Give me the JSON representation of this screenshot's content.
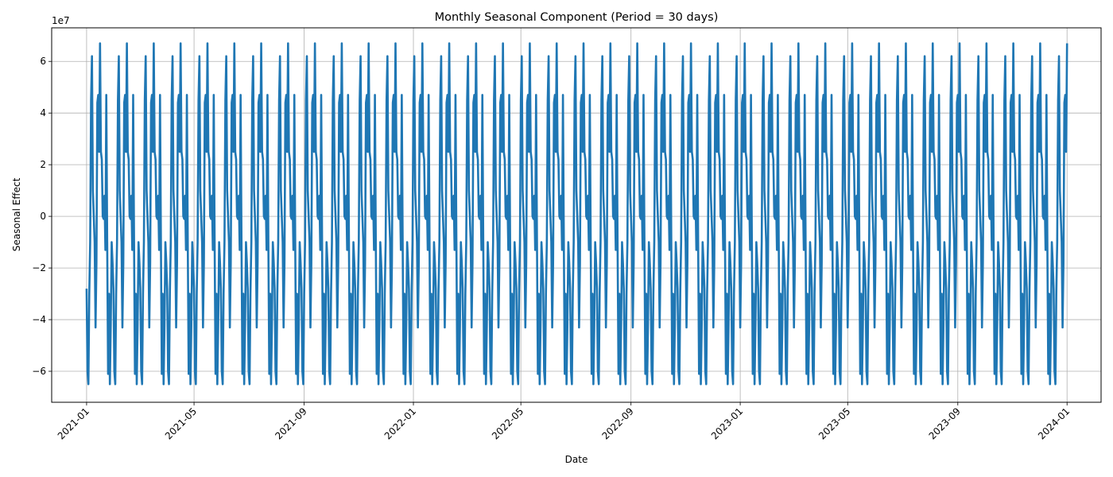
{
  "chart_data": {
    "type": "line",
    "title": "Monthly Seasonal Component (Period = 30 days)",
    "xlabel": "Date",
    "ylabel": "Seasonal Effect",
    "y_offset_label": "1e7",
    "x_range": [
      "2020-11-23",
      "2024-02-08"
    ],
    "ylim": [
      -72000000,
      73000000
    ],
    "x_ticks": [
      "2021-01",
      "2021-05",
      "2021-09",
      "2022-01",
      "2022-05",
      "2022-09",
      "2023-01",
      "2023-05",
      "2023-09",
      "2024-01"
    ],
    "y_ticks": [
      -6,
      -4,
      -2,
      0,
      2,
      4,
      6
    ],
    "grid": true,
    "series": [
      {
        "color": "#1f77b4",
        "start_date": "2021-01-01",
        "end_date": "2024-01-01",
        "period_days": 30,
        "seasonal_pattern": [
          -28000000,
          -60000000,
          -65000000,
          -30000000,
          -10000000,
          45000000,
          62000000,
          10000000,
          0,
          -10000000,
          -43000000,
          -18000000,
          44000000,
          47000000,
          25000000,
          67000000,
          25000000,
          22000000,
          0,
          -1000000,
          8000000,
          -13000000,
          47000000,
          -10000000,
          -61000000,
          -30000000,
          -65000000,
          -42000000,
          -10000000,
          -18000000
        ]
      }
    ]
  }
}
